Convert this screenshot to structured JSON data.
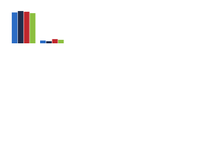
{
  "chart_data": {
    "type": "bar",
    "categories": [
      null,
      null
    ],
    "series": [
      {
        "color": "#2b6cc4",
        "values": [
          44,
          4
        ]
      },
      {
        "color": "#1f2d4d",
        "values": [
          46,
          3
        ]
      },
      {
        "color": "#c0272d",
        "values": [
          45,
          6
        ]
      },
      {
        "color": "#8cbf3f",
        "values": [
          43,
          5
        ]
      }
    ],
    "ylim": [
      0,
      50
    ]
  }
}
